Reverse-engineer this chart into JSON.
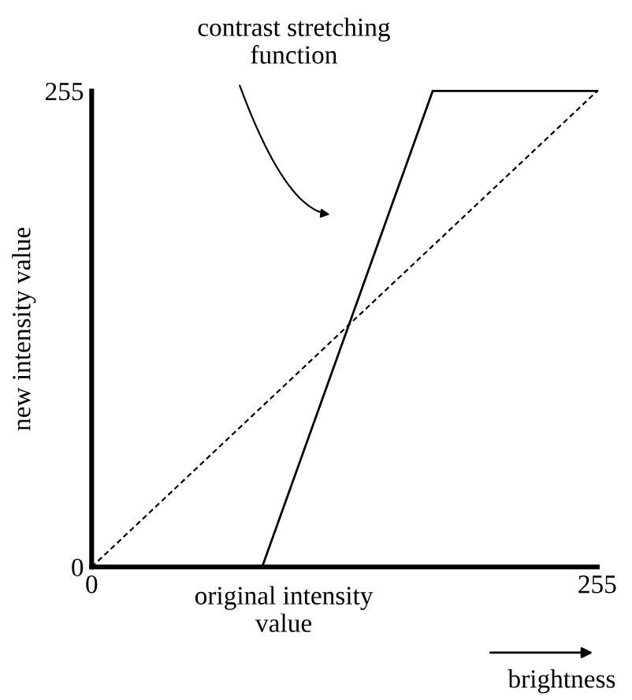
{
  "chart_data": {
    "type": "line",
    "xlabel": "original intensity\nvalue",
    "ylabel": "new intensity value",
    "series": [
      {
        "color": "#000000",
        "x": [
          86,
          172,
          255
        ],
        "values": [
          0,
          255,
          255
        ],
        "line_style": "solid"
      },
      {
        "color": "#000000",
        "x": [
          0,
          255
        ],
        "values": [
          0,
          255
        ],
        "line_style": "dashed"
      }
    ],
    "xlim": [
      0,
      255
    ],
    "ylim": [
      0,
      255
    ],
    "xticks": [
      0,
      255
    ],
    "yticks": [
      0,
      255
    ],
    "annotations": [
      "contrast stretching\nfunction",
      "brightness"
    ],
    "grid": false,
    "marker": "none"
  }
}
